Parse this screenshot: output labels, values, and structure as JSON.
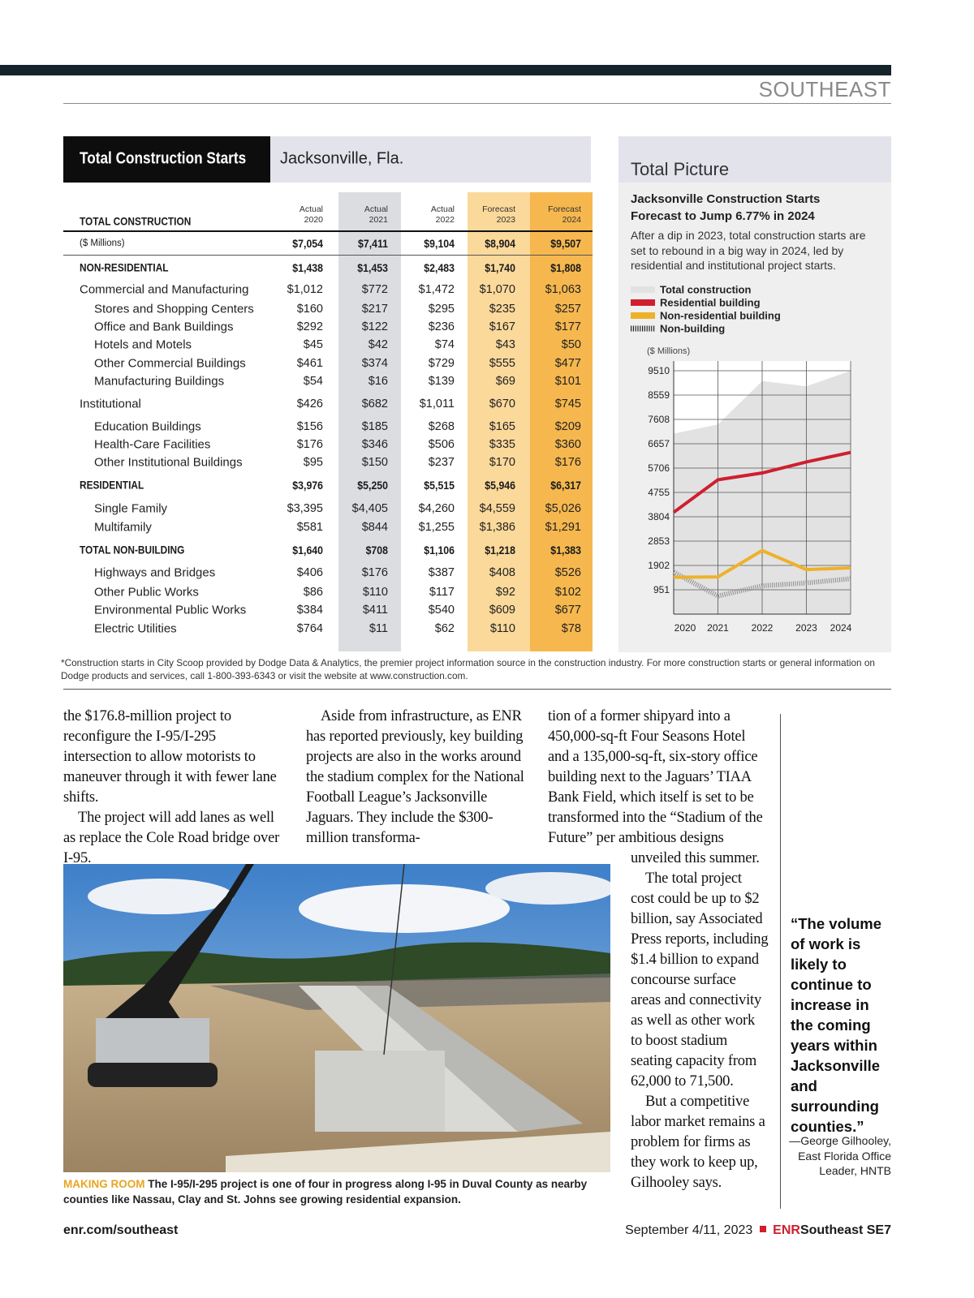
{
  "header": {
    "section": "SOUTHEAST"
  },
  "table": {
    "title": "Total Construction Starts",
    "location": "Jacksonville, Fla.",
    "columns": [
      {
        "status": "Actual",
        "year": "2020"
      },
      {
        "status": "Actual",
        "year": "2021"
      },
      {
        "status": "Actual",
        "year": "2022"
      },
      {
        "status": "Forecast",
        "year": "2023"
      },
      {
        "status": "Forecast",
        "year": "2024"
      }
    ],
    "total": {
      "label": "TOTAL CONSTRUCTION",
      "unit": "($ Millions)",
      "values": [
        "$7,054",
        "$7,411",
        "$9,104",
        "$8,904",
        "$9,507"
      ]
    },
    "sections": [
      {
        "label": "NON-RESIDENTIAL",
        "values": [
          "$1,438",
          "$1,453",
          "$2,483",
          "$1,740",
          "$1,808"
        ],
        "groups": [
          {
            "label": "Commercial and Manufacturing",
            "values": [
              "$1,012",
              "$772",
              "$1,472",
              "$1,070",
              "$1,063"
            ],
            "items": [
              {
                "label": "Stores and Shopping Centers",
                "values": [
                  "$160",
                  "$217",
                  "$295",
                  "$235",
                  "$257"
                ]
              },
              {
                "label": "Office and Bank Buildings",
                "values": [
                  "$292",
                  "$122",
                  "$236",
                  "$167",
                  "$177"
                ]
              },
              {
                "label": "Hotels and Motels",
                "values": [
                  "$45",
                  "$42",
                  "$74",
                  "$43",
                  "$50"
                ]
              },
              {
                "label": "Other Commercial Buildings",
                "values": [
                  "$461",
                  "$374",
                  "$729",
                  "$555",
                  "$477"
                ]
              },
              {
                "label": "Manufacturing Buildings",
                "values": [
                  "$54",
                  "$16",
                  "$139",
                  "$69",
                  "$101"
                ]
              }
            ]
          },
          {
            "label": "Institutional",
            "values": [
              "$426",
              "$682",
              "$1,011",
              "$670",
              "$745"
            ],
            "items": [
              {
                "label": "Education Buildings",
                "values": [
                  "$156",
                  "$185",
                  "$268",
                  "$165",
                  "$209"
                ]
              },
              {
                "label": "Health-Care Facilities",
                "values": [
                  "$176",
                  "$346",
                  "$506",
                  "$335",
                  "$360"
                ]
              },
              {
                "label": "Other Institutional Buildings",
                "values": [
                  "$95",
                  "$150",
                  "$237",
                  "$170",
                  "$176"
                ]
              }
            ]
          }
        ]
      },
      {
        "label": "RESIDENTIAL",
        "values": [
          "$3,976",
          "$5,250",
          "$5,515",
          "$5,946",
          "$6,317"
        ],
        "items": [
          {
            "label": "Single Family",
            "values": [
              "$3,395",
              "$4,405",
              "$4,260",
              "$4,559",
              "$5,026"
            ]
          },
          {
            "label": "Multifamily",
            "values": [
              "$581",
              "$844",
              "$1,255",
              "$1,386",
              "$1,291"
            ]
          }
        ]
      },
      {
        "label": "TOTAL NON-BUILDING",
        "values": [
          "$1,640",
          "$708",
          "$1,106",
          "$1,218",
          "$1,383"
        ],
        "items": [
          {
            "label": "Highways and Bridges",
            "values": [
              "$406",
              "$176",
              "$387",
              "$408",
              "$526"
            ]
          },
          {
            "label": "Other Public Works",
            "values": [
              "$86",
              "$110",
              "$117",
              "$92",
              "$102"
            ]
          },
          {
            "label": "Environmental Public Works",
            "values": [
              "$384",
              "$411",
              "$540",
              "$609",
              "$677"
            ]
          },
          {
            "label": "Electric Utilities",
            "values": [
              "$764",
              "$11",
              "$62",
              "$110",
              "$78"
            ]
          }
        ]
      }
    ],
    "footnote": "*Construction starts in City Scoop provided by Dodge Data & Analytics, the premier project information source in the construction industry. For more construction starts or general information on Dodge products and services, call 1-800-393-6343 or visit the website at www.construction.com."
  },
  "total_picture": {
    "heading": "Total Picture",
    "title": "Jacksonville Construction Starts Forecast to Jump 6.77% in 2024",
    "description": "After a dip in 2023, total construction starts are set to rebound in a big way in 2024, led by residential and institutional project starts.",
    "chart": {
      "type": "line",
      "unit": "($ Millions)",
      "x": [
        2020,
        2021,
        2022,
        2023,
        2024
      ],
      "xlim": [
        2020,
        2024
      ],
      "xticks": [
        2020,
        2021,
        2022,
        2023,
        2024
      ],
      "ylim": [
        0,
        9510
      ],
      "yticks": [
        951,
        1902,
        2853,
        3804,
        4755,
        5706,
        6657,
        7608,
        8559,
        9510
      ],
      "grid": true,
      "series": [
        {
          "name": "Total construction",
          "color": "#e2e2e3",
          "values": [
            7054,
            7411,
            9104,
            8904,
            9507
          ]
        },
        {
          "name": "Residential building",
          "color": "#cf1f2e",
          "values": [
            3976,
            5250,
            5515,
            5946,
            6317
          ]
        },
        {
          "name": "Non-residential building",
          "color": "#eeb12a",
          "values": [
            1438,
            1453,
            2483,
            1740,
            1808
          ]
        },
        {
          "name": "Non-building",
          "color": "#8c8c8c",
          "values": [
            1640,
            708,
            1106,
            1218,
            1383
          ]
        }
      ]
    }
  },
  "article": {
    "columns": [
      [
        "the $176.8-million project to reconfigure the I-95/I-295 intersection to allow motorists to maneuver through it with fewer lane shifts.",
        "The project will add lanes as well as replace the Cole Road bridge over I-95."
      ],
      [
        "Aside from infrastructure, as ENR has reported previously, key building projects are also in the works around the stadium complex for the National Football League’s Jacksonville Jaguars. They include the $300-million transforma-"
      ],
      [
        "tion of a former shipyard into a 450,000-sq-ft Four Seasons Hotel and a 135,000-sq-ft, six-story office building next to the Jaguars’ TIAA Bank Field, which itself is set to be transformed into the “Stadium of the Future” per ambitious designs"
      ],
      [
        "unveiled this summer.",
        "The total project cost could be up to $2 billion, say Associated Press reports, including $1.4 billion to expand concourse surface areas and connectivity as well as other work to boost stadium seating capacity from 62,000 to 71,500.",
        "But a competitive labor market remains a problem for firms as they work to keep up, Gilhooley says."
      ]
    ]
  },
  "quote": {
    "text": "“The volume of work is likely to continue to increase in the coming years within Jacksonville and surrounding counties.”",
    "attribution": "—George Gilhooley, East Florida Office Leader, HNTB"
  },
  "caption": {
    "label": "MAKING ROOM",
    "text": "The I-95/I-295 project is one of four in progress along I-95 in Duval County as nearby counties like Nassau, Clay and St. Johns see growing residential expansion."
  },
  "footer": {
    "url": "enr.com/southeast",
    "date": "September 4/11, 2023",
    "brand": "ENR",
    "edition": "Southeast",
    "page": "SE7"
  }
}
